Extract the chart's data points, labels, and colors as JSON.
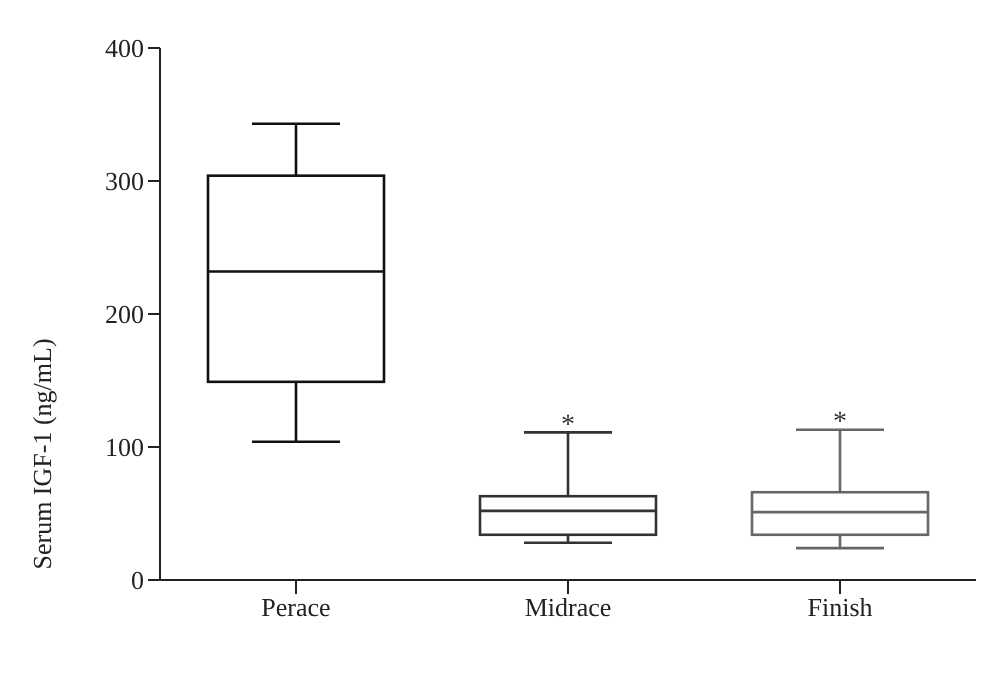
{
  "chart_data": {
    "type": "box",
    "ylabel": "Serum IGF-1 (ng/mL)",
    "categories": [
      "Perace",
      "Midrace",
      "Finish"
    ],
    "boxes": [
      {
        "low": 104,
        "q1": 149,
        "median": 232,
        "q3": 304,
        "high": 343
      },
      {
        "low": 28,
        "q1": 34,
        "median": 52,
        "q3": 63,
        "high": 111
      },
      {
        "low": 24,
        "q1": 34,
        "median": 51,
        "q3": 66,
        "high": 113
      }
    ],
    "colors": [
      "#111111",
      "#333333",
      "#666666"
    ],
    "ylim": [
      0,
      400
    ],
    "yticks": [
      0,
      100,
      200,
      300,
      400
    ],
    "annotations": [
      {
        "text": "*",
        "x": "Midrace",
        "y": 118
      },
      {
        "text": "*",
        "x": "Finish",
        "y": 120
      }
    ]
  }
}
